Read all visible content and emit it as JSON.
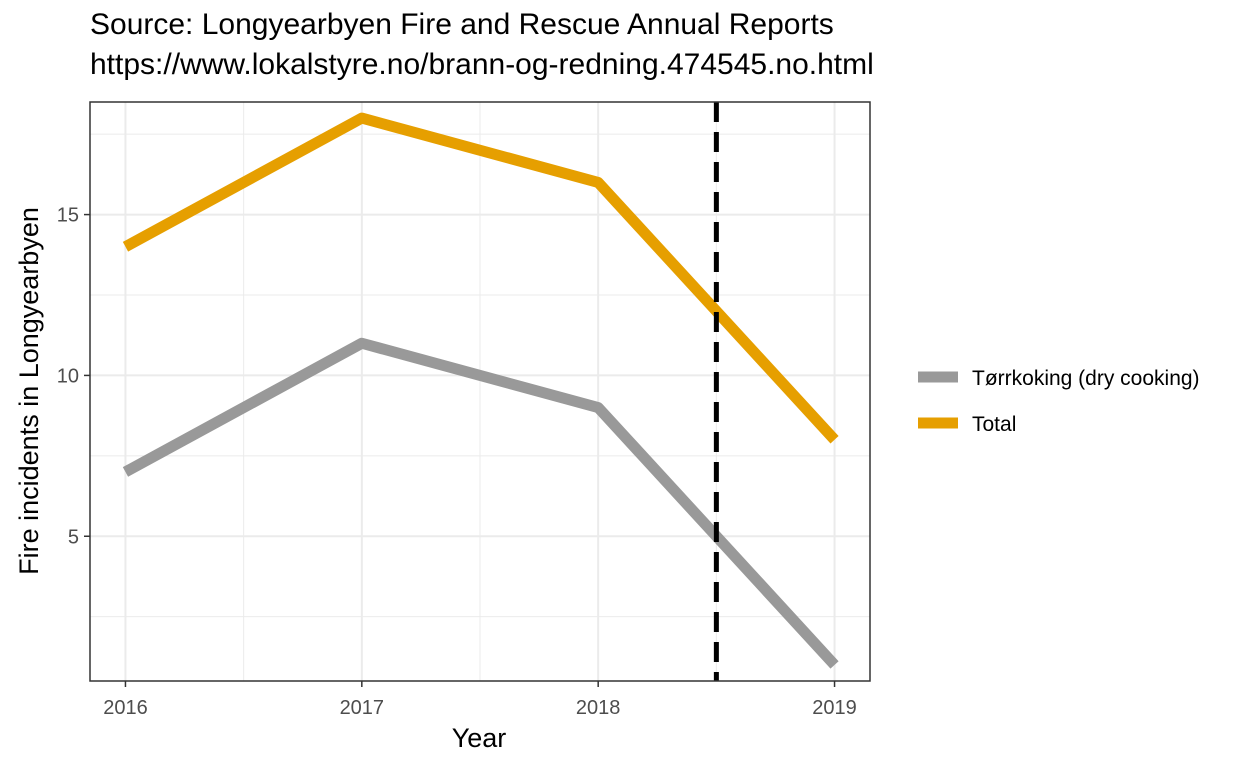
{
  "header": {
    "title_line1": "Source: Longyearbyen Fire and Rescue Annual Reports",
    "title_line2": "https://www.lokalstyre.no/brann-og-redning.474545.no.html"
  },
  "chart_data": {
    "type": "line",
    "title": "Source: Longyearbyen Fire and Rescue Annual Reports\nhttps://www.lokalstyre.no/brann-og-redning.474545.no.html",
    "xlabel": "Year",
    "ylabel": "Fire incidents in Longyearbyen",
    "x": [
      2016,
      2017,
      2018,
      2019
    ],
    "x_ticks": [
      "2016",
      "2017",
      "2018",
      "2019"
    ],
    "xlim": [
      2015.85,
      2019.15
    ],
    "y_ticks": [
      5,
      10,
      15
    ],
    "ylim": [
      0.5,
      18.5
    ],
    "grid": true,
    "legend_position": "right",
    "series": [
      {
        "name": "Tørrkoking (dry cooking)",
        "values": [
          7,
          11,
          9,
          1
        ],
        "color": "#999999"
      },
      {
        "name": "Total",
        "values": [
          14,
          18,
          16,
          8
        ],
        "color": "#E69F00"
      }
    ],
    "annotations": [
      {
        "type": "vertical-dashed-line",
        "x": 2018.5,
        "color": "#000000"
      }
    ]
  }
}
